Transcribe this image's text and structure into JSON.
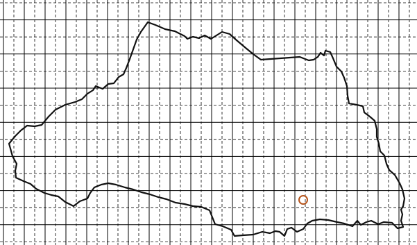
{
  "map": {
    "grid": {
      "solid_line_color": "#000000",
      "dashed_line_color": "#000000",
      "shown": true
    },
    "outline": {
      "stroke_color": "#111111",
      "fill": "none"
    },
    "marker": {
      "shape": "circle-outline",
      "stroke_color": "#b5541b"
    },
    "background_color": "#ffffff"
  }
}
